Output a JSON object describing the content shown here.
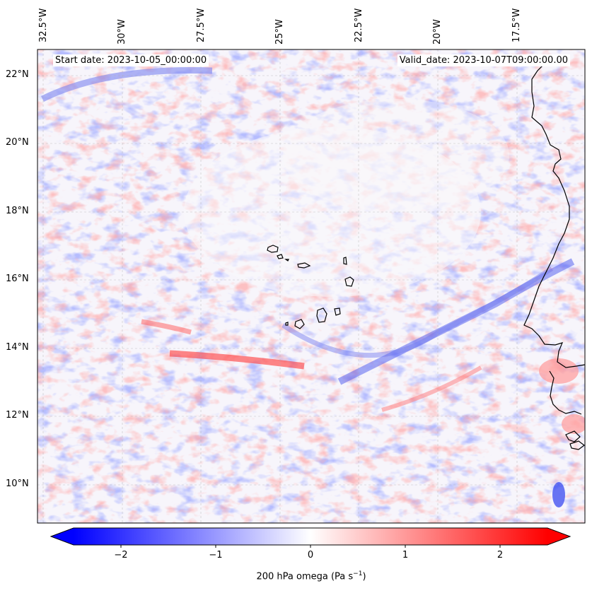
{
  "map": {
    "start_date": "Start date: 2023-10-05_00:00:00",
    "valid_date": "Valid_date: 2023-10-07T09:00:00.00",
    "lon_labels": [
      "32.5°W",
      "30°W",
      "27.5°W",
      "25°W",
      "22.5°W",
      "20°W",
      "17.5°W"
    ],
    "lat_labels": [
      "22°N",
      "20°N",
      "18°N",
      "16°N",
      "14°N",
      "12°N",
      "10°N"
    ],
    "lon_values": [
      -32.5,
      -30,
      -27.5,
      -25,
      -22.5,
      -20,
      -17.5
    ],
    "lat_values": [
      22,
      20,
      18,
      16,
      14,
      12,
      10
    ],
    "colormap": "bwr",
    "land_outline_color": "#000000",
    "features": [
      "Cape Verde islands",
      "West African coastline (Senegal, Gambia, Guinea-Bissau, Guinea)"
    ]
  },
  "colorbar": {
    "ticks": [
      "−2",
      "−1",
      "0",
      "1",
      "2"
    ],
    "tick_values": [
      -2,
      -1,
      0,
      1,
      2
    ],
    "range": [
      -2.5,
      2.5
    ],
    "label": "200 hPa omega (Pa s",
    "label_sup": "−1",
    "label_end": ")",
    "extend": "both",
    "colors": {
      "min": "#0000ff",
      "mid": "#ffffff",
      "max": "#ff0000"
    }
  }
}
